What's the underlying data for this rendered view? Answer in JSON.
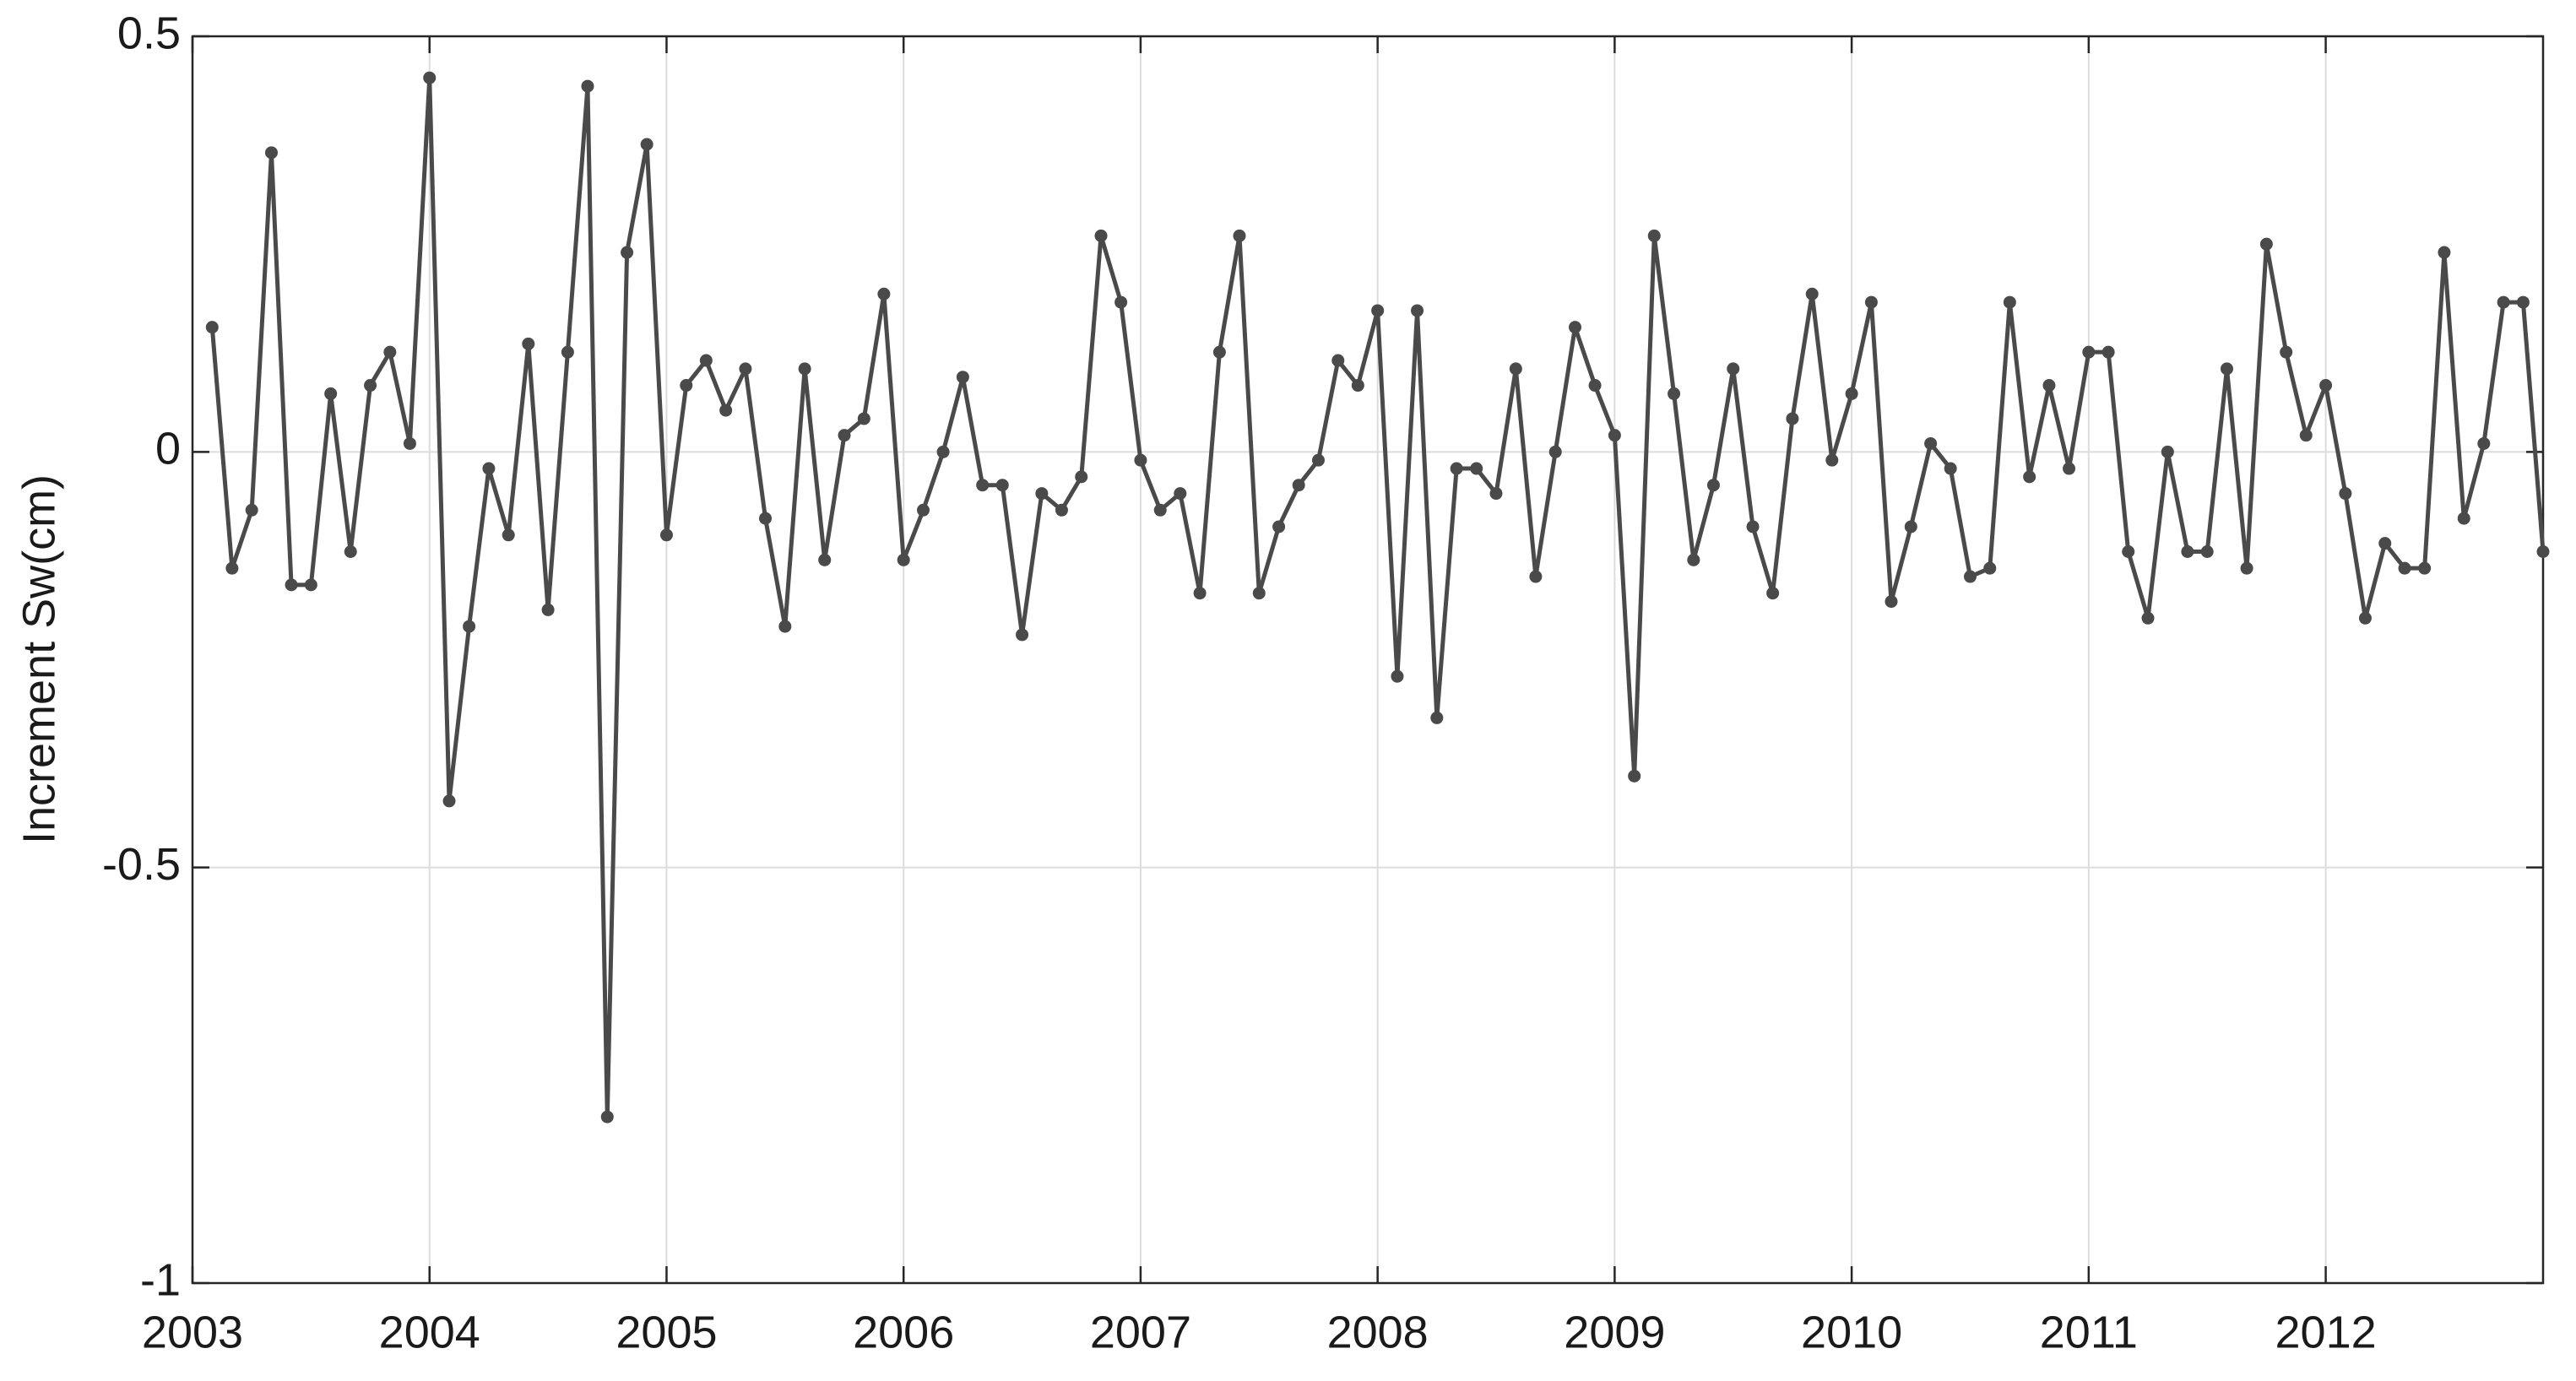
{
  "chart_data": {
    "type": "line",
    "ylabel": "Increment Sw(cm)",
    "x": [
      2003.083,
      2003.167,
      2003.25,
      2003.333,
      2003.417,
      2003.5,
      2003.583,
      2003.667,
      2003.75,
      2003.833,
      2003.917,
      2004,
      2004.083,
      2004.167,
      2004.25,
      2004.333,
      2004.417,
      2004.5,
      2004.583,
      2004.667,
      2004.75,
      2004.833,
      2004.917,
      2005,
      2005.083,
      2005.167,
      2005.25,
      2005.333,
      2005.417,
      2005.5,
      2005.583,
      2005.667,
      2005.75,
      2005.833,
      2005.917,
      2006,
      2006.083,
      2006.167,
      2006.25,
      2006.333,
      2006.417,
      2006.5,
      2006.583,
      2006.667,
      2006.75,
      2006.833,
      2006.917,
      2007,
      2007.083,
      2007.167,
      2007.25,
      2007.333,
      2007.417,
      2007.5,
      2007.583,
      2007.667,
      2007.75,
      2007.833,
      2007.917,
      2008,
      2008.083,
      2008.167,
      2008.25,
      2008.333,
      2008.417,
      2008.5,
      2008.583,
      2008.667,
      2008.75,
      2008.833,
      2008.917,
      2009,
      2009.083,
      2009.167,
      2009.25,
      2009.333,
      2009.417,
      2009.5,
      2009.583,
      2009.667,
      2009.75,
      2009.833,
      2009.917,
      2010,
      2010.083,
      2010.167,
      2010.25,
      2010.333,
      2010.417,
      2010.5,
      2010.583,
      2010.667,
      2010.75,
      2010.833,
      2010.917,
      2011,
      2011.083,
      2011.167,
      2011.25,
      2011.333,
      2011.417,
      2011.5,
      2011.583,
      2011.667,
      2011.75,
      2011.833,
      2011.917,
      2012,
      2012.083,
      2012.167,
      2012.25,
      2012.333,
      2012.417,
      2012.5,
      2012.583,
      2012.667,
      2012.75,
      2012.833,
      2012.917
    ],
    "series": [
      {
        "color": "#4a4a4a",
        "values": [
          0.15,
          -0.14,
          -0.07,
          0.36,
          -0.16,
          -0.16,
          0.07,
          -0.12,
          0.08,
          0.12,
          0.01,
          0.45,
          -0.42,
          -0.21,
          -0.02,
          -0.1,
          0.13,
          -0.19,
          0.12,
          0.44,
          -0.8,
          0.24,
          0.37,
          -0.1,
          0.08,
          0.11,
          0.05,
          0.1,
          -0.08,
          -0.21,
          0.1,
          -0.13,
          0.02,
          0.04,
          0.19,
          -0.13,
          -0.07,
          0.0,
          0.09,
          -0.04,
          -0.04,
          -0.22,
          -0.05,
          -0.07,
          -0.03,
          0.26,
          0.18,
          -0.01,
          -0.07,
          -0.05,
          -0.17,
          0.12,
          0.26,
          -0.17,
          -0.09,
          -0.04,
          -0.01,
          0.11,
          0.08,
          0.17,
          -0.27,
          0.17,
          -0.32,
          -0.02,
          -0.02,
          -0.05,
          0.1,
          -0.15,
          0.0,
          0.15,
          0.08,
          0.02,
          -0.39,
          0.26,
          0.07,
          -0.13,
          -0.04,
          0.1,
          -0.09,
          -0.17,
          0.04,
          0.19,
          -0.01,
          0.07,
          0.18,
          -0.18,
          -0.09,
          0.01,
          -0.02,
          -0.15,
          -0.14,
          0.18,
          -0.03,
          0.08,
          -0.02,
          0.12,
          0.12,
          -0.12,
          -0.2,
          0.0,
          -0.12,
          -0.12,
          0.1,
          -0.14,
          0.25,
          0.12,
          0.02,
          0.08,
          -0.05,
          -0.2,
          -0.11,
          -0.14,
          -0.14,
          0.24,
          -0.08,
          0.01,
          0.18,
          0.18,
          -0.12
        ]
      }
    ],
    "xlim": [
      2003,
      2012.917
    ],
    "xticks": [
      2003,
      2004,
      2005,
      2006,
      2007,
      2008,
      2009,
      2010,
      2011,
      2012
    ],
    "ylim": [
      -1,
      0.5
    ],
    "yticks": [
      -1,
      -0.5,
      0,
      0.5
    ],
    "grid": true
  }
}
